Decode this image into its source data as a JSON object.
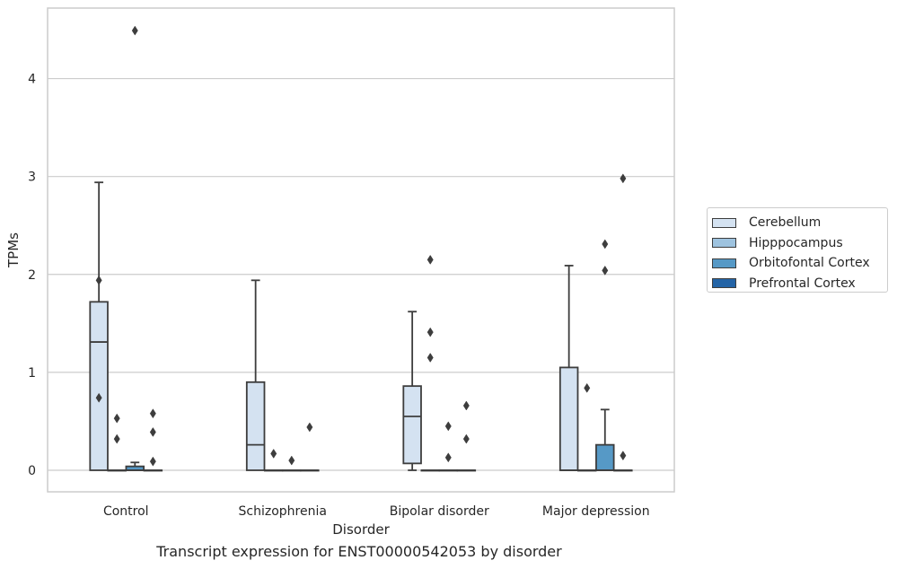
{
  "chart_data": {
    "type": "box",
    "caption": "Transcript expression for ENST00000542053 by disorder",
    "xlabel": "Disorder",
    "ylabel": "TPMs",
    "ylim": [
      -0.22,
      4.72
    ],
    "yticks": [
      0,
      1,
      2,
      3,
      4
    ],
    "grid": true,
    "legend_position": "right",
    "categories": [
      "Control",
      "Schizophrenia",
      "Bipolar disorder",
      "Major depression"
    ],
    "series": [
      {
        "name": "Cerebellum",
        "color": "#d4e2f1",
        "boxes": [
          {
            "whislo": 0,
            "q1": 0,
            "med": 1.31,
            "q3": 1.72,
            "whishi": 2.94,
            "fliers": [
              1.94,
              0.74
            ]
          },
          {
            "whislo": 0,
            "q1": 0,
            "med": 0.26,
            "q3": 0.9,
            "whishi": 1.94,
            "fliers": []
          },
          {
            "whislo": 0,
            "q1": 0.07,
            "med": 0.55,
            "q3": 0.86,
            "whishi": 1.62,
            "fliers": []
          },
          {
            "whislo": 0,
            "q1": 0,
            "med": 0,
            "q3": 1.05,
            "whishi": 2.09,
            "fliers": []
          }
        ]
      },
      {
        "name": "Hipppocampus",
        "color": "#9ec3df",
        "boxes": [
          {
            "whislo": 0,
            "q1": 0,
            "med": 0,
            "q3": 0,
            "whishi": 0,
            "fliers": [
              0.53,
              0.32
            ]
          },
          {
            "whislo": 0,
            "q1": 0,
            "med": 0,
            "q3": 0,
            "whishi": 0,
            "fliers": [
              0.17
            ]
          },
          {
            "whislo": 0,
            "q1": 0,
            "med": 0,
            "q3": 0,
            "whishi": 0,
            "fliers": [
              2.15,
              1.41,
              1.15
            ]
          },
          {
            "whislo": 0,
            "q1": 0,
            "med": 0,
            "q3": 0,
            "whishi": 0,
            "fliers": [
              0.84
            ]
          }
        ]
      },
      {
        "name": "Orbitofontal Cortex",
        "color": "#5699c6",
        "boxes": [
          {
            "whislo": 0,
            "q1": 0,
            "med": 0,
            "q3": 0.04,
            "whishi": 0.08,
            "fliers": [
              4.49
            ]
          },
          {
            "whislo": 0,
            "q1": 0,
            "med": 0,
            "q3": 0,
            "whishi": 0,
            "fliers": [
              0.1
            ]
          },
          {
            "whislo": 0,
            "q1": 0,
            "med": 0,
            "q3": 0,
            "whishi": 0,
            "fliers": [
              0.45,
              0.13
            ]
          },
          {
            "whislo": 0,
            "q1": 0,
            "med": 0,
            "q3": 0.26,
            "whishi": 0.62,
            "fliers": [
              2.31,
              2.04
            ]
          }
        ]
      },
      {
        "name": "Prefrontal Cortex",
        "color": "#2464a6",
        "boxes": [
          {
            "whislo": 0,
            "q1": 0,
            "med": 0,
            "q3": 0,
            "whishi": 0,
            "fliers": [
              0.58,
              0.39,
              0.09
            ]
          },
          {
            "whislo": 0,
            "q1": 0,
            "med": 0,
            "q3": 0,
            "whishi": 0,
            "fliers": [
              0.44
            ]
          },
          {
            "whislo": 0,
            "q1": 0,
            "med": 0,
            "q3": 0,
            "whishi": 0,
            "fliers": [
              0.66,
              0.32
            ]
          },
          {
            "whislo": 0,
            "q1": 0,
            "med": 0,
            "q3": 0,
            "whishi": 0,
            "fliers": [
              2.98,
              0.15
            ]
          }
        ]
      }
    ]
  }
}
